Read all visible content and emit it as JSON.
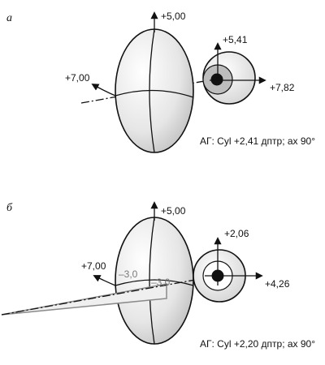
{
  "panel_a": {
    "letter": "а",
    "lens_top": "+5,00",
    "lens_left": "+7,00",
    "eye_top": "+5,41",
    "eye_right": "+7,82",
    "caption": "АГ: Cyl +2,41 дптр; ах 90°"
  },
  "panel_b": {
    "letter": "б",
    "lens_top": "+5,00",
    "lens_left": "+7,00",
    "prism_left": "–3,0",
    "prism_right": "–3,0",
    "eye_top": "+2,06",
    "eye_right": "+4,26",
    "caption": "АГ: Cyl +2,20 дптр; ах 90°"
  }
}
